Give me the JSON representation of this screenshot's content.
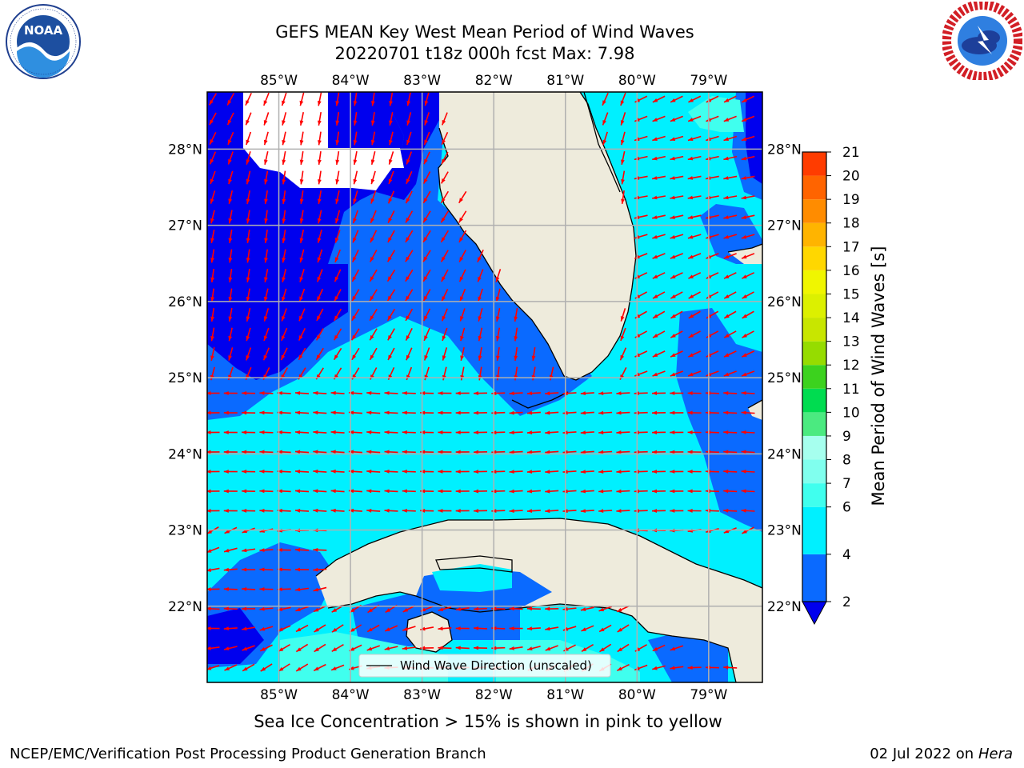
{
  "header": {
    "title_line1": "GEFS MEAN Key West Mean Period of Wind Waves",
    "title_line2": "20220701 t18z 000h fcst   Max: 7.98"
  },
  "logos": {
    "left": {
      "icon": "noaa-logo",
      "text": "NOAA",
      "ring_text": "NATIONAL OCEANIC AND ATMOSPHERIC ADMINISTRATION · U.S. DEPARTMENT OF COMMERCE"
    },
    "right": {
      "icon": "nws-logo",
      "ring_text": "NATIONAL WEATHER SERVICE"
    }
  },
  "map": {
    "lon_labels": [
      "85°W",
      "84°W",
      "83°W",
      "82°W",
      "81°W",
      "80°W",
      "79°W"
    ],
    "lat_labels": [
      "28°N",
      "27°N",
      "26°N",
      "25°N",
      "24°N",
      "23°N",
      "22°N"
    ],
    "lon_values": [
      -85,
      -84,
      -83,
      -82,
      -81,
      -80,
      -79
    ],
    "lat_values": [
      28,
      27,
      26,
      25,
      24,
      23,
      22
    ],
    "extent": {
      "lon_min": -86.0,
      "lon_max": -78.25,
      "lat_min": 21.0,
      "lat_max": 28.75
    },
    "legend_label": "Wind Wave Direction (unscaled)",
    "wave_direction_icon": "red-arrow-icon",
    "colors": {
      "land": "#eeebdc",
      "arrow": "#ff0000",
      "coast": "#000000",
      "grid": "#b0b0b0"
    }
  },
  "colorbar": {
    "label": "Mean Period of Wind Waves [s]",
    "ticks": [
      "21",
      "20",
      "19",
      "18",
      "17",
      "16",
      "15",
      "14",
      "13",
      "12",
      "11",
      "10",
      "9",
      "8",
      "7",
      "6",
      "4",
      "2"
    ],
    "bands": [
      {
        "from": 2,
        "color": "#0a6aff"
      },
      {
        "from": 4,
        "color": "#00f0ff"
      },
      {
        "from": 6,
        "color": "#40ffee"
      },
      {
        "from": 7,
        "color": "#80ffee"
      },
      {
        "from": 8,
        "color": "#a6ffee"
      },
      {
        "from": 9,
        "color": "#4bea80"
      },
      {
        "from": 10,
        "color": "#00dc50"
      },
      {
        "from": 11,
        "color": "#3cd21e"
      },
      {
        "from": 12,
        "color": "#96dc00"
      },
      {
        "from": 13,
        "color": "#c8e600"
      },
      {
        "from": 14,
        "color": "#dcf000"
      },
      {
        "from": 15,
        "color": "#f0f600"
      },
      {
        "from": 16,
        "color": "#ffd700"
      },
      {
        "from": 17,
        "color": "#ffb400"
      },
      {
        "from": 18,
        "color": "#ff8c00"
      },
      {
        "from": 19,
        "color": "#ff6400"
      },
      {
        "from": 20,
        "color": "#ff3c00"
      }
    ],
    "under_color": "#0000ee",
    "field_colors": {
      "lt2": "#0000ee",
      "2to4": "#0a6aff",
      "4to6": "#00f0ff",
      "6to7": "#40ffee"
    }
  },
  "note": "Sea Ice Concentration > 15% is shown in pink to yellow",
  "footer": {
    "left": "NCEP/EMC/Verification Post Processing Product Generation Branch",
    "date": "02 Jul 2022 on ",
    "host": "Hera"
  }
}
